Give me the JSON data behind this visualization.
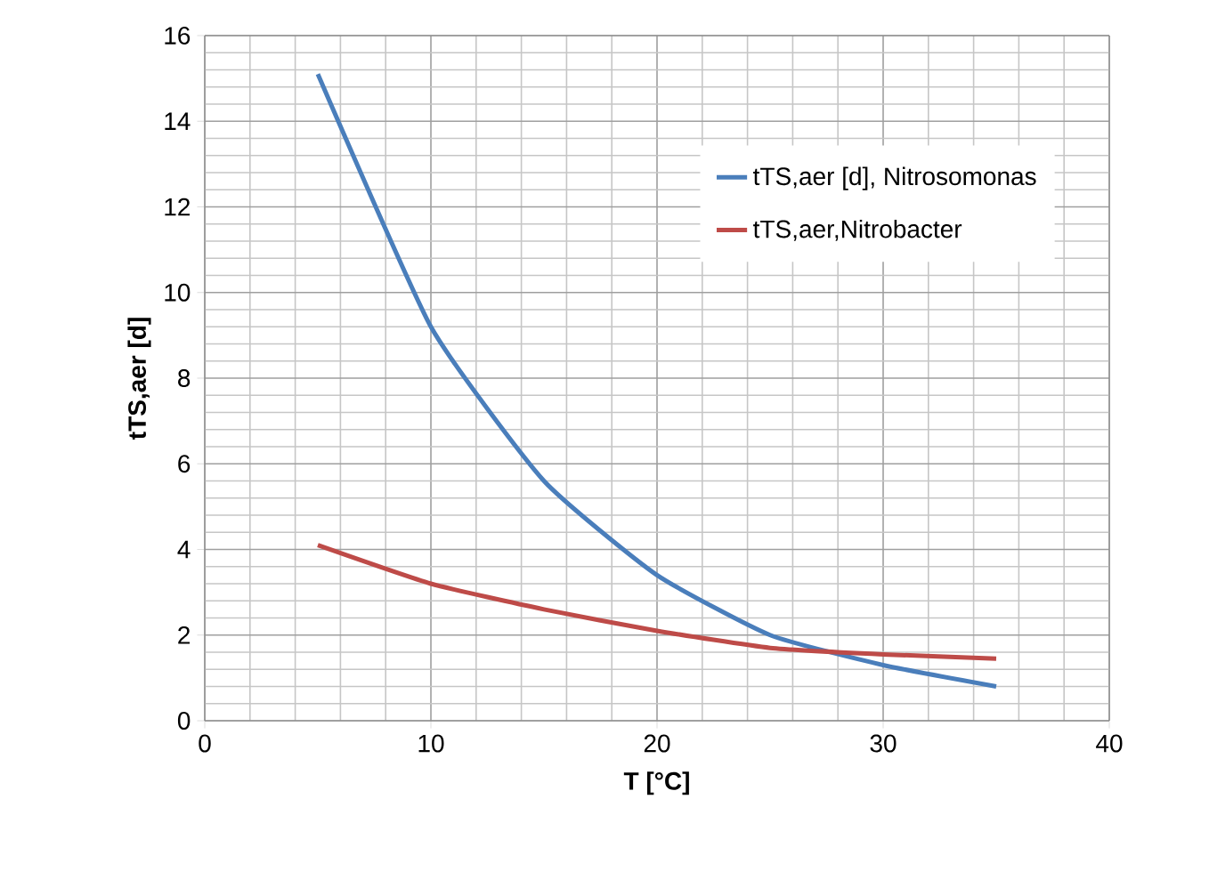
{
  "chart_data": {
    "type": "line",
    "xlabel": "T [°C]",
    "ylabel": "tTS,aer [d]",
    "x": [
      5,
      10,
      15,
      20,
      25,
      30,
      35
    ],
    "series": [
      {
        "name": "tTS,aer [d], Nitrosomonas",
        "color": "#4a7ebb",
        "values": [
          15.1,
          9.2,
          5.6,
          3.4,
          2.0,
          1.3,
          0.8
        ]
      },
      {
        "name": "tTS,aer,Nitrobacter",
        "color": "#be4b48",
        "values": [
          4.1,
          3.2,
          2.6,
          2.1,
          1.7,
          1.55,
          1.45
        ]
      }
    ],
    "xlim": [
      0,
      40
    ],
    "ylim": [
      0,
      16
    ],
    "xticks": [
      0,
      10,
      20,
      30,
      40
    ],
    "yticks": [
      0,
      2,
      4,
      6,
      8,
      10,
      12,
      14,
      16
    ],
    "grid": true,
    "legend": "top right",
    "marker": "none",
    "line_style": "solid"
  }
}
